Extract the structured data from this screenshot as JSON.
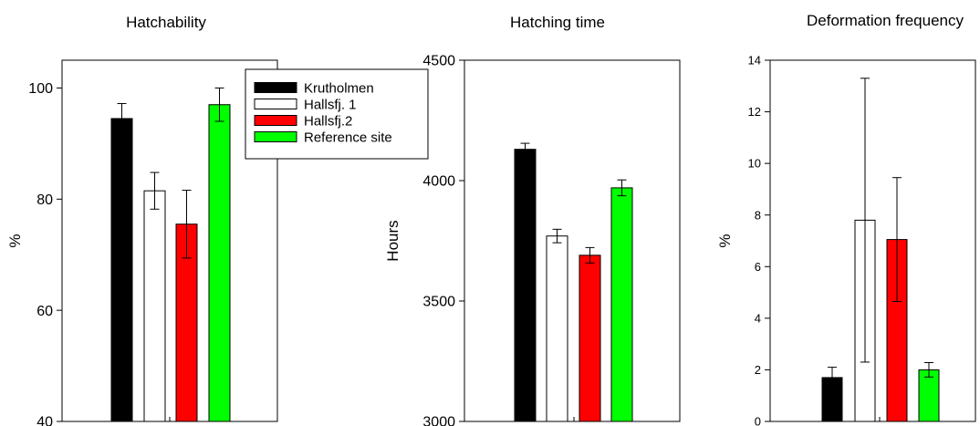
{
  "chart_data": [
    {
      "type": "bar",
      "title": "Hatchability",
      "ylabel": "%",
      "xlabel": "",
      "ylim": [
        40,
        105
      ],
      "yticks": [
        40,
        60,
        80,
        100
      ],
      "grid": false,
      "legend_position": "top-right",
      "series": [
        {
          "name": "Krutholmen",
          "value": 94.5,
          "error": 2.7,
          "color": "#000000"
        },
        {
          "name": "Hallsfj. 1",
          "value": 81.5,
          "error": 3.3,
          "color": "#ffffff"
        },
        {
          "name": "Hallsfj.2",
          "value": 75.5,
          "error": 6.1,
          "color": "#ff0000"
        },
        {
          "name": "Reference site",
          "value": 97.0,
          "error": 3.0,
          "color": "#00ff00"
        }
      ]
    },
    {
      "type": "bar",
      "title": "Hatching time",
      "ylabel": "Hours",
      "xlabel": "",
      "ylim": [
        3000,
        4500
      ],
      "yticks": [
        3000,
        3500,
        4000,
        4500
      ],
      "grid": false,
      "series": [
        {
          "name": "Krutholmen",
          "value": 4130,
          "error": 25,
          "color": "#000000"
        },
        {
          "name": "Hallsfj. 1",
          "value": 3770,
          "error": 28,
          "color": "#ffffff"
        },
        {
          "name": "Hallsfj.2",
          "value": 3690,
          "error": 32,
          "color": "#ff0000"
        },
        {
          "name": "Reference site",
          "value": 3970,
          "error": 33,
          "color": "#00ff00"
        }
      ]
    },
    {
      "type": "bar",
      "title": "Deformation frequency",
      "ylabel": "%",
      "xlabel": "",
      "ylim": [
        0,
        14
      ],
      "yticks": [
        0,
        2,
        4,
        6,
        8,
        10,
        12,
        14
      ],
      "grid": false,
      "series": [
        {
          "name": "Krutholmen",
          "value": 1.7,
          "error": 0.4,
          "color": "#000000"
        },
        {
          "name": "Hallsfj. 1",
          "value": 7.8,
          "error": 5.5,
          "color": "#ffffff"
        },
        {
          "name": "Hallsfj.2",
          "value": 7.05,
          "error": 2.4,
          "color": "#ff0000"
        },
        {
          "name": "Reference site",
          "value": 2.0,
          "error": 0.28,
          "color": "#00ff00"
        }
      ]
    }
  ]
}
